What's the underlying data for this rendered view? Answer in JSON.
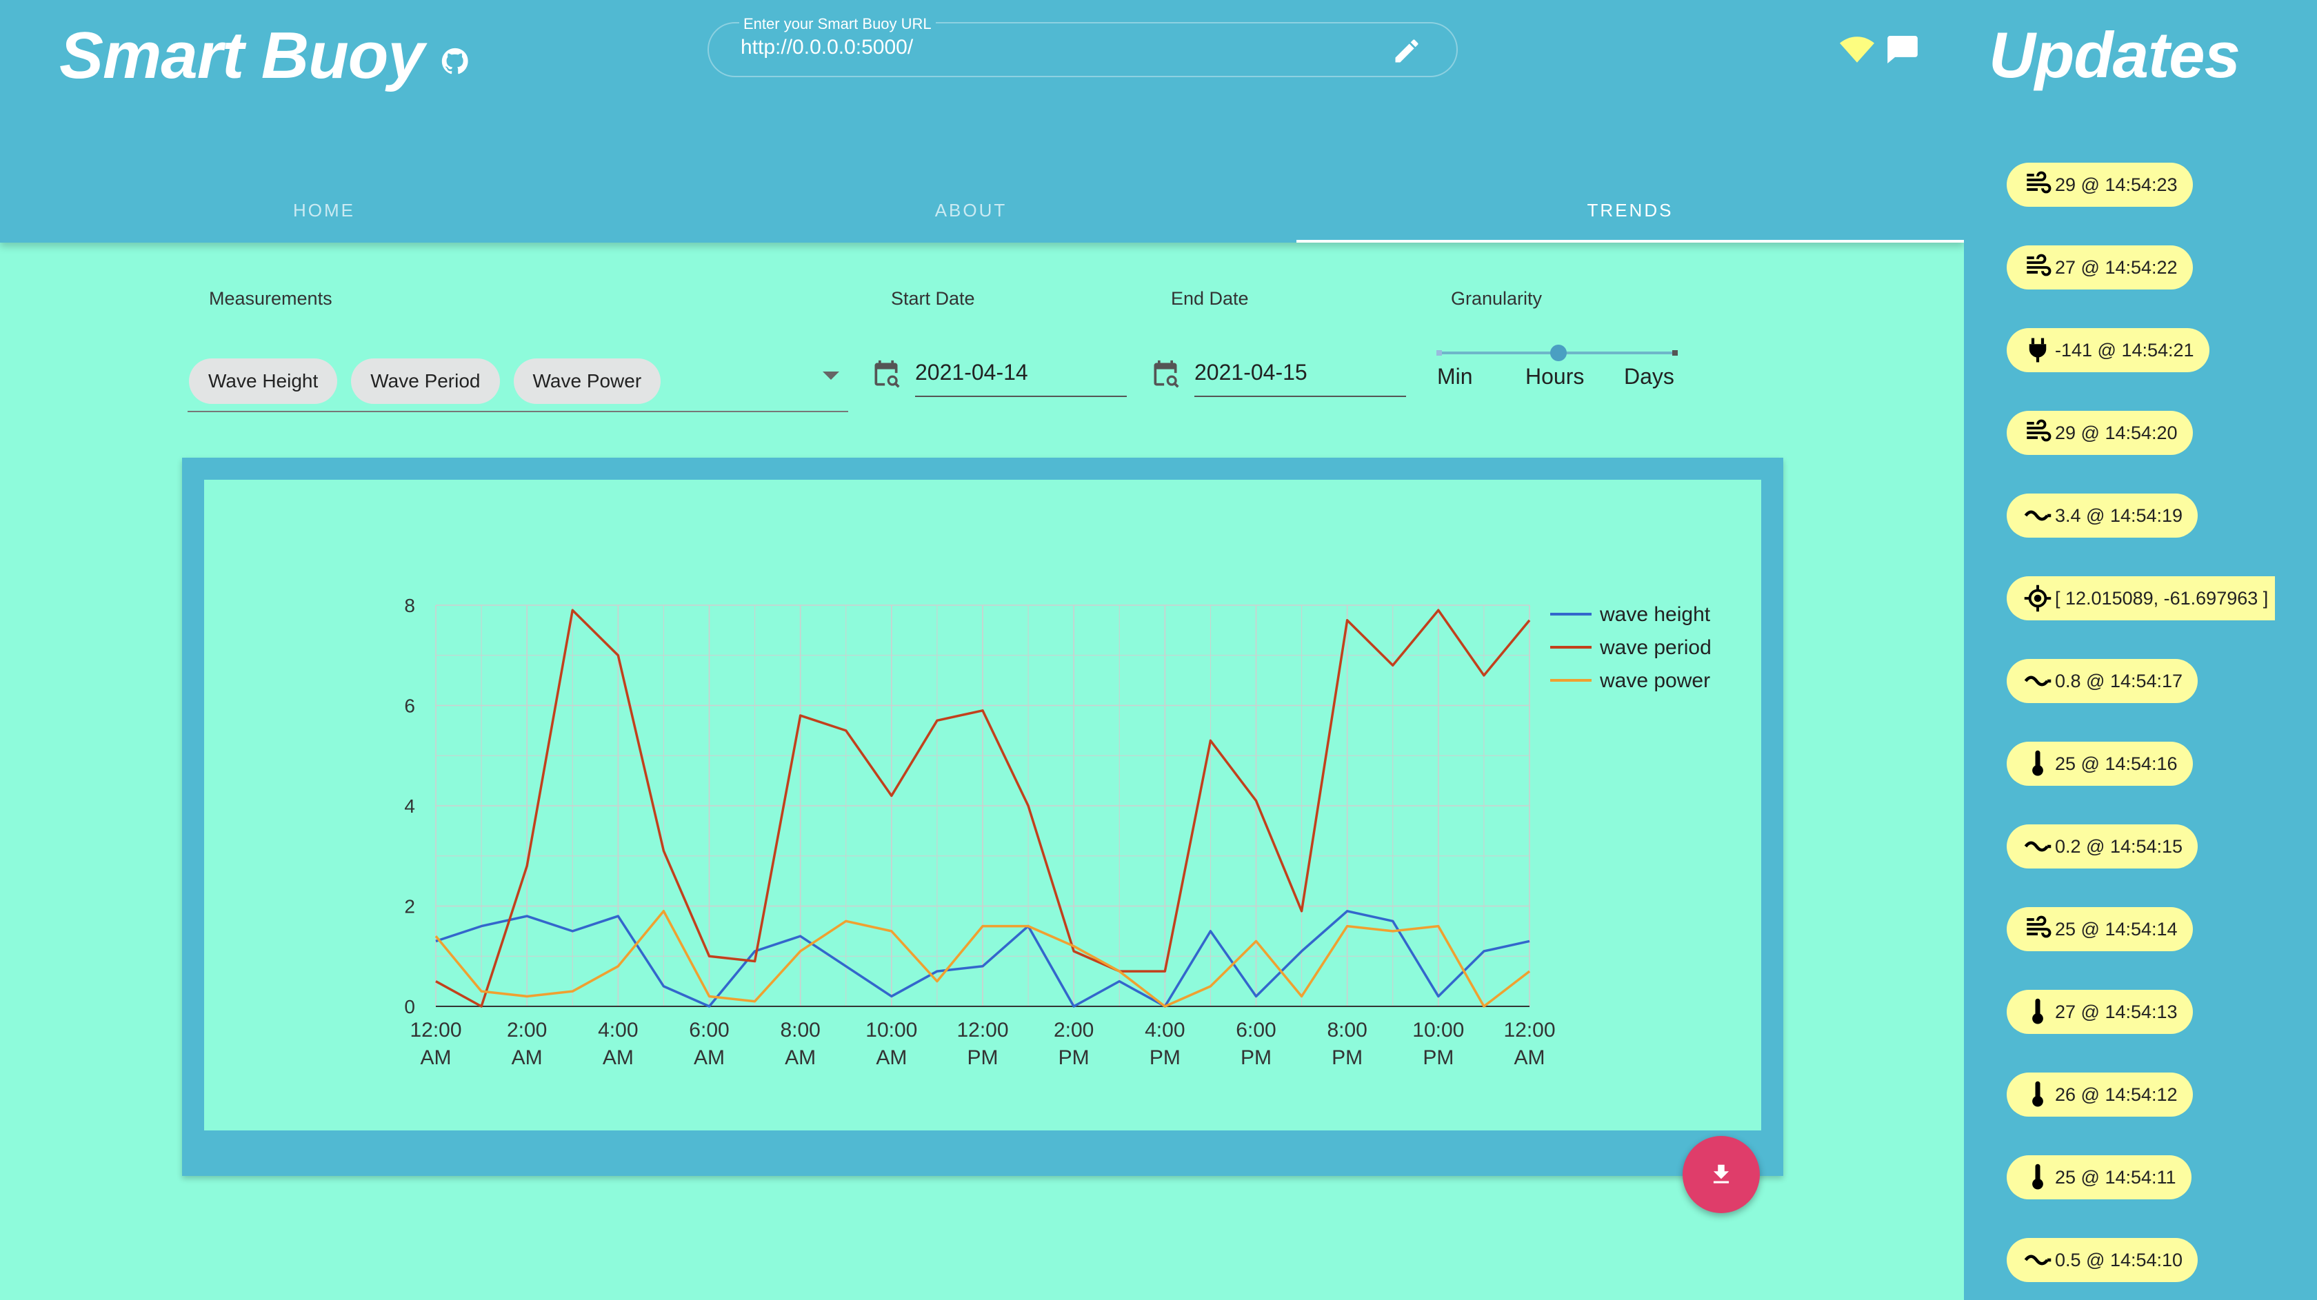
{
  "header": {
    "title": "Smart Buoy",
    "url_label": "Enter your Smart Buoy URL",
    "url_value": "http://0.0.0.0:5000/"
  },
  "tabs": [
    {
      "label": "HOME",
      "active": false
    },
    {
      "label": "ABOUT",
      "active": false
    },
    {
      "label": "TRENDS",
      "active": true
    }
  ],
  "controls": {
    "measurements_label": "Measurements",
    "chips": [
      "Wave Height",
      "Wave Period",
      "Wave Power"
    ],
    "start_date_label": "Start Date",
    "start_date": "2021-04-14",
    "end_date_label": "End Date",
    "end_date": "2021-04-15",
    "granularity_label": "Granularity",
    "granularity_options": [
      "Min",
      "Hours",
      "Days"
    ],
    "granularity_selected": "Hours"
  },
  "sidebar": {
    "title": "Updates",
    "updates": [
      {
        "icon": "wind-icon",
        "text": "29 @ 14:54:23"
      },
      {
        "icon": "wind-icon",
        "text": "27 @ 14:54:22"
      },
      {
        "icon": "plug-icon",
        "text": "-141 @ 14:54:21"
      },
      {
        "icon": "wind-icon",
        "text": "29 @ 14:54:20"
      },
      {
        "icon": "wave-icon",
        "text": "3.4 @ 14:54:19"
      },
      {
        "icon": "gps-target-icon",
        "text": "[ 12.015089, -61.697963 ]"
      },
      {
        "icon": "wave-icon",
        "text": "0.8 @ 14:54:17"
      },
      {
        "icon": "thermometer-icon",
        "text": "25 @ 14:54:16"
      },
      {
        "icon": "wave-icon",
        "text": "0.2 @ 14:54:15"
      },
      {
        "icon": "wind-icon",
        "text": "25 @ 14:54:14"
      },
      {
        "icon": "thermometer-icon",
        "text": "27 @ 14:54:13"
      },
      {
        "icon": "thermometer-icon",
        "text": "26 @ 14:54:12"
      },
      {
        "icon": "thermometer-icon",
        "text": "25 @ 14:54:11"
      },
      {
        "icon": "wave-icon",
        "text": "0.5 @ 14:54:10"
      }
    ]
  },
  "colors": {
    "header": "#51b9d2",
    "background": "#8efbdb",
    "chip": "#fdfda0",
    "fab": "#df3d6a"
  },
  "chart_data": {
    "type": "line",
    "title": "",
    "xlabel": "",
    "ylabel": "",
    "ylim": [
      0,
      8
    ],
    "yticks": [
      0,
      2,
      4,
      6,
      8
    ],
    "xlim_hours": [
      0,
      24
    ],
    "xtick_labels": [
      [
        "12:00",
        "AM"
      ],
      [
        "2:00",
        "AM"
      ],
      [
        "4:00",
        "AM"
      ],
      [
        "6:00",
        "AM"
      ],
      [
        "8:00",
        "AM"
      ],
      [
        "10:00",
        "AM"
      ],
      [
        "12:00",
        "PM"
      ],
      [
        "2:00",
        "PM"
      ],
      [
        "4:00",
        "PM"
      ],
      [
        "6:00",
        "PM"
      ],
      [
        "8:00",
        "PM"
      ],
      [
        "10:00",
        "PM"
      ],
      [
        "12:00",
        "AM"
      ]
    ],
    "x_hours": [
      0,
      1,
      2,
      3,
      4,
      5,
      6,
      7,
      8,
      9,
      10,
      11,
      12,
      13,
      14,
      15,
      16,
      17,
      18,
      19,
      20,
      21,
      22,
      23,
      24
    ],
    "legend_position": "right",
    "grid": true,
    "series": [
      {
        "name": "wave height",
        "color": "#3366cc",
        "values": [
          1.3,
          1.6,
          1.8,
          1.5,
          1.8,
          0.4,
          0.0,
          1.1,
          1.4,
          0.8,
          0.2,
          0.7,
          0.8,
          1.6,
          0.0,
          0.5,
          0.0,
          1.5,
          0.2,
          1.1,
          1.9,
          1.7,
          0.2,
          1.1,
          1.3
        ]
      },
      {
        "name": "wave period",
        "color": "#c2401c",
        "values": [
          0.5,
          0.0,
          2.8,
          7.9,
          7.0,
          3.1,
          1.0,
          0.9,
          5.8,
          5.5,
          4.2,
          5.7,
          5.9,
          4.0,
          1.1,
          0.7,
          0.7,
          5.3,
          4.1,
          1.9,
          7.7,
          6.8,
          7.9,
          6.6,
          7.7
        ]
      },
      {
        "name": "wave power",
        "color": "#f0a030",
        "values": [
          1.4,
          0.3,
          0.2,
          0.3,
          0.8,
          1.9,
          0.2,
          0.1,
          1.1,
          1.7,
          1.5,
          0.5,
          1.6,
          1.6,
          1.2,
          0.7,
          0.0,
          0.4,
          1.3,
          0.2,
          1.6,
          1.5,
          1.6,
          0.0,
          0.7
        ]
      }
    ]
  }
}
